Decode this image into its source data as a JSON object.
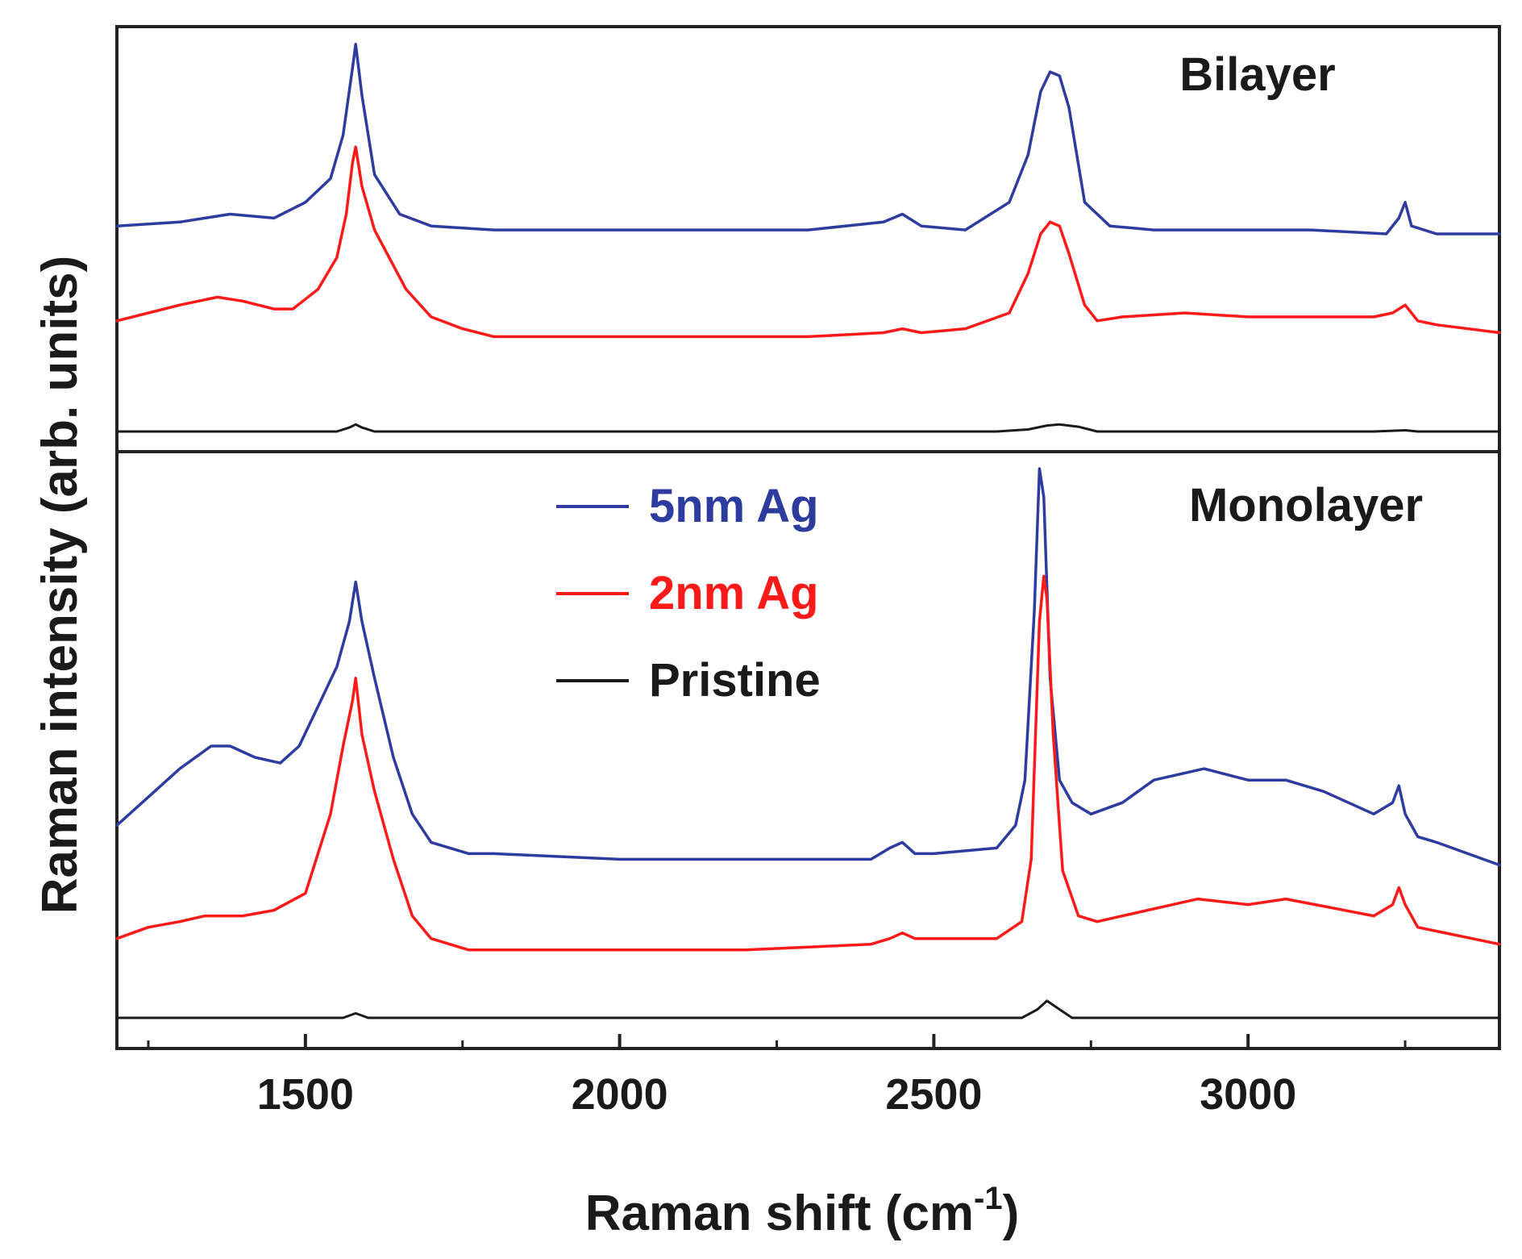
{
  "chart_data": {
    "type": "line",
    "xlabel": "Raman shift (cm",
    "xlabel_sup": "-1",
    "xlabel_close": ")",
    "ylabel": "Raman intensity (arb. units)",
    "xlim": [
      1200,
      3400
    ],
    "x_ticks": [
      1500,
      2000,
      2500,
      3000
    ],
    "x_minor_ticks": [
      1250,
      1750,
      2250,
      2750,
      3250
    ],
    "y_ticks_shown": false,
    "colors": {
      "blue": "#2e3ca0",
      "red": "#ff1a1a",
      "black": "#1a1a1a"
    },
    "legend": {
      "placement": "inside lower panel, upper center",
      "entries": [
        {
          "label": "5nm Ag",
          "series": "5nm Ag",
          "color": "#2e3ca0"
        },
        {
          "label": "2nm Ag",
          "series": "2nm Ag",
          "color": "#ff1a1a"
        },
        {
          "label": "Pristine",
          "series": "Pristine",
          "color": "#1a1a1a"
        }
      ]
    },
    "panels": [
      {
        "id": "bilayer",
        "label": "Bilayer",
        "label_placement": "top-right",
        "ylim": [
          0,
          100
        ],
        "series": [
          {
            "name": "5nm Ag",
            "color": "#2e3ca0",
            "x": [
              1200,
              1300,
              1380,
              1450,
              1500,
              1540,
              1560,
              1575,
              1580,
              1590,
              1610,
              1650,
              1700,
              1800,
              2000,
              2300,
              2420,
              2450,
              2480,
              2550,
              2620,
              2650,
              2670,
              2685,
              2700,
              2715,
              2740,
              2780,
              2850,
              2950,
              3100,
              3220,
              3240,
              3250,
              3260,
              3300,
              3400
            ],
            "y": [
              52,
              53,
              55,
              54,
              58,
              64,
              75,
              92,
              98,
              85,
              65,
              55,
              52,
              51,
              51,
              51,
              53,
              55,
              52,
              51,
              58,
              70,
              86,
              91,
              90,
              82,
              58,
              52,
              51,
              51,
              51,
              50,
              54,
              58,
              52,
              50,
              50
            ]
          },
          {
            "name": "2nm Ag",
            "color": "#ff1a1a",
            "x": [
              1200,
              1250,
              1300,
              1360,
              1400,
              1450,
              1480,
              1520,
              1550,
              1565,
              1575,
              1580,
              1590,
              1610,
              1630,
              1660,
              1700,
              1750,
              1800,
              2000,
              2300,
              2420,
              2450,
              2480,
              2550,
              2620,
              2650,
              2670,
              2685,
              2700,
              2715,
              2740,
              2760,
              2800,
              2900,
              3000,
              3100,
              3200,
              3230,
              3250,
              3270,
              3300,
              3400
            ],
            "y": [
              28,
              30,
              32,
              34,
              33,
              31,
              31,
              36,
              44,
              55,
              68,
              72,
              62,
              51,
              45,
              36,
              29,
              26,
              24,
              24,
              24,
              25,
              26,
              25,
              26,
              30,
              40,
              50,
              53,
              52,
              45,
              32,
              28,
              29,
              30,
              29,
              29,
              29,
              30,
              32,
              28,
              27,
              25
            ]
          },
          {
            "name": "Pristine",
            "color": "#1a1a1a",
            "x": [
              1200,
              1550,
              1570,
              1580,
              1590,
              1610,
              2600,
              2650,
              2680,
              2700,
              2730,
              2760,
              3200,
              3250,
              3270,
              3400
            ],
            "y": [
              0,
              0,
              1,
              1.8,
              1,
              0,
              0,
              0.5,
              1.5,
              1.8,
              1.2,
              0,
              0,
              0.3,
              0,
              0
            ]
          }
        ]
      },
      {
        "id": "monolayer",
        "label": "Monolayer",
        "label_placement": "top-right",
        "ylim": [
          0,
          100
        ],
        "series": [
          {
            "name": "5nm Ag",
            "color": "#2e3ca0",
            "x": [
              1200,
              1250,
              1300,
              1350,
              1380,
              1420,
              1460,
              1490,
              1520,
              1550,
              1570,
              1580,
              1590,
              1610,
              1640,
              1670,
              1700,
              1760,
              1800,
              2000,
              2200,
              2400,
              2430,
              2450,
              2470,
              2500,
              2600,
              2630,
              2645,
              2660,
              2668,
              2675,
              2685,
              2700,
              2720,
              2750,
              2800,
              2850,
              2930,
              3000,
              3060,
              3120,
              3200,
              3230,
              3240,
              3250,
              3270,
              3300,
              3400
            ],
            "y": [
              34,
              39,
              44,
              48,
              48,
              46,
              45,
              48,
              55,
              62,
              70,
              77,
              70,
              60,
              46,
              36,
              31,
              29,
              29,
              28,
              28,
              28,
              30,
              31,
              29,
              29,
              30,
              34,
              42,
              72,
              97,
              92,
              60,
              42,
              38,
              36,
              38,
              42,
              44,
              42,
              42,
              40,
              36,
              38,
              41,
              36,
              32,
              31,
              27
            ]
          },
          {
            "name": "2nm Ag",
            "color": "#ff1a1a",
            "x": [
              1200,
              1250,
              1300,
              1340,
              1400,
              1450,
              1500,
              1540,
              1560,
              1575,
              1580,
              1590,
              1610,
              1640,
              1670,
              1700,
              1760,
              1800,
              2000,
              2200,
              2400,
              2430,
              2450,
              2470,
              2500,
              2600,
              2640,
              2655,
              2668,
              2675,
              2680,
              2690,
              2705,
              2730,
              2760,
              2800,
              2920,
              3000,
              3060,
              3200,
              3230,
              3240,
              3250,
              3270,
              3400
            ],
            "y": [
              14,
              16,
              17,
              18,
              18,
              19,
              22,
              36,
              48,
              56,
              60,
              50,
              40,
              28,
              18,
              14,
              12,
              12,
              12,
              12,
              13,
              14,
              15,
              14,
              14,
              14,
              17,
              28,
              70,
              78,
              74,
              50,
              26,
              18,
              17,
              18,
              21,
              20,
              21,
              18,
              20,
              23,
              20,
              16,
              13
            ]
          },
          {
            "name": "Pristine",
            "color": "#1a1a1a",
            "x": [
              1200,
              1560,
              1580,
              1600,
              2640,
              2665,
              2680,
              2700,
              2720,
              3400
            ],
            "y": [
              0,
              0,
              0.8,
              0,
              0,
              1.5,
              3,
              1.5,
              0,
              0
            ]
          }
        ]
      }
    ]
  }
}
